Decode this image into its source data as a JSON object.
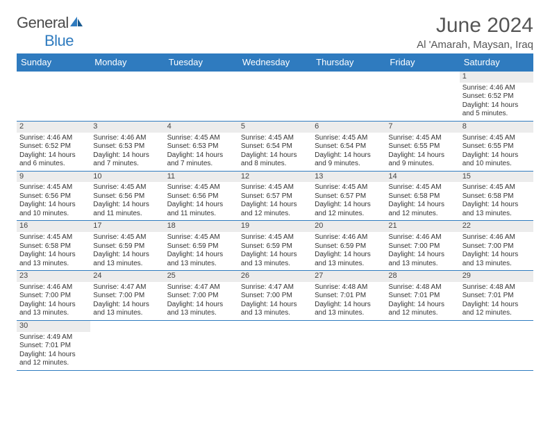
{
  "logo": {
    "text_a": "General",
    "text_b": "Blue"
  },
  "title": {
    "month": "June 2024",
    "location": "Al 'Amarah, Maysan, Iraq"
  },
  "colors": {
    "brand": "#2f7bbf",
    "header_bg": "#2f7bbf",
    "header_text": "#ffffff",
    "daynum_bg": "#ececec",
    "text": "#333333",
    "page_bg": "#ffffff"
  },
  "dow": [
    "Sunday",
    "Monday",
    "Tuesday",
    "Wednesday",
    "Thursday",
    "Friday",
    "Saturday"
  ],
  "first_weekday": 6,
  "days": [
    {
      "sunrise": "4:46 AM",
      "sunset": "6:52 PM",
      "daylight": "14 hours and 5 minutes."
    },
    {
      "sunrise": "4:46 AM",
      "sunset": "6:52 PM",
      "daylight": "14 hours and 6 minutes."
    },
    {
      "sunrise": "4:46 AM",
      "sunset": "6:53 PM",
      "daylight": "14 hours and 7 minutes."
    },
    {
      "sunrise": "4:45 AM",
      "sunset": "6:53 PM",
      "daylight": "14 hours and 7 minutes."
    },
    {
      "sunrise": "4:45 AM",
      "sunset": "6:54 PM",
      "daylight": "14 hours and 8 minutes."
    },
    {
      "sunrise": "4:45 AM",
      "sunset": "6:54 PM",
      "daylight": "14 hours and 9 minutes."
    },
    {
      "sunrise": "4:45 AM",
      "sunset": "6:55 PM",
      "daylight": "14 hours and 9 minutes."
    },
    {
      "sunrise": "4:45 AM",
      "sunset": "6:55 PM",
      "daylight": "14 hours and 10 minutes."
    },
    {
      "sunrise": "4:45 AM",
      "sunset": "6:56 PM",
      "daylight": "14 hours and 10 minutes."
    },
    {
      "sunrise": "4:45 AM",
      "sunset": "6:56 PM",
      "daylight": "14 hours and 11 minutes."
    },
    {
      "sunrise": "4:45 AM",
      "sunset": "6:56 PM",
      "daylight": "14 hours and 11 minutes."
    },
    {
      "sunrise": "4:45 AM",
      "sunset": "6:57 PM",
      "daylight": "14 hours and 12 minutes."
    },
    {
      "sunrise": "4:45 AM",
      "sunset": "6:57 PM",
      "daylight": "14 hours and 12 minutes."
    },
    {
      "sunrise": "4:45 AM",
      "sunset": "6:58 PM",
      "daylight": "14 hours and 12 minutes."
    },
    {
      "sunrise": "4:45 AM",
      "sunset": "6:58 PM",
      "daylight": "14 hours and 13 minutes."
    },
    {
      "sunrise": "4:45 AM",
      "sunset": "6:58 PM",
      "daylight": "14 hours and 13 minutes."
    },
    {
      "sunrise": "4:45 AM",
      "sunset": "6:59 PM",
      "daylight": "14 hours and 13 minutes."
    },
    {
      "sunrise": "4:45 AM",
      "sunset": "6:59 PM",
      "daylight": "14 hours and 13 minutes."
    },
    {
      "sunrise": "4:45 AM",
      "sunset": "6:59 PM",
      "daylight": "14 hours and 13 minutes."
    },
    {
      "sunrise": "4:46 AM",
      "sunset": "6:59 PM",
      "daylight": "14 hours and 13 minutes."
    },
    {
      "sunrise": "4:46 AM",
      "sunset": "7:00 PM",
      "daylight": "14 hours and 13 minutes."
    },
    {
      "sunrise": "4:46 AM",
      "sunset": "7:00 PM",
      "daylight": "14 hours and 13 minutes."
    },
    {
      "sunrise": "4:46 AM",
      "sunset": "7:00 PM",
      "daylight": "14 hours and 13 minutes."
    },
    {
      "sunrise": "4:47 AM",
      "sunset": "7:00 PM",
      "daylight": "14 hours and 13 minutes."
    },
    {
      "sunrise": "4:47 AM",
      "sunset": "7:00 PM",
      "daylight": "14 hours and 13 minutes."
    },
    {
      "sunrise": "4:47 AM",
      "sunset": "7:00 PM",
      "daylight": "14 hours and 13 minutes."
    },
    {
      "sunrise": "4:48 AM",
      "sunset": "7:01 PM",
      "daylight": "14 hours and 13 minutes."
    },
    {
      "sunrise": "4:48 AM",
      "sunset": "7:01 PM",
      "daylight": "14 hours and 12 minutes."
    },
    {
      "sunrise": "4:48 AM",
      "sunset": "7:01 PM",
      "daylight": "14 hours and 12 minutes."
    },
    {
      "sunrise": "4:49 AM",
      "sunset": "7:01 PM",
      "daylight": "14 hours and 12 minutes."
    }
  ],
  "labels": {
    "sunrise": "Sunrise: ",
    "sunset": "Sunset: ",
    "daylight": "Daylight: "
  }
}
